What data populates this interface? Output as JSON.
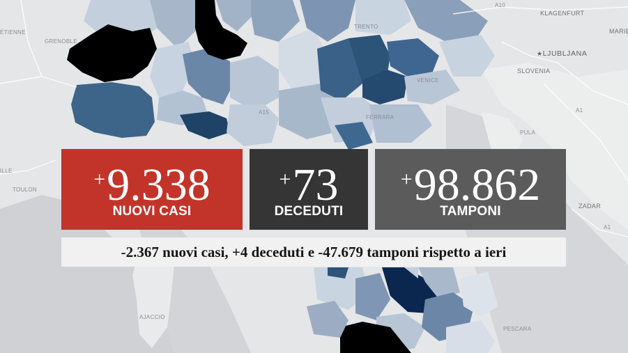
{
  "colors": {
    "background": "#e5e6e8",
    "cases_card": "#c2342a",
    "deaths_card": "#353535",
    "tests_card": "#5b5b5b",
    "banner": "#f1f1f1",
    "shade_darkest": "#000000",
    "shade_navy": "#0b2750",
    "shade_dark": "#2e5579",
    "shade_medium": "#53749a",
    "shade_light": "#a7b6c9"
  },
  "map": {
    "labels": {
      "grenoble": "GRENOBLE",
      "etienne": "ÉTIENNE",
      "ille": "ILLE",
      "toulon": "TOULON",
      "ajaccio": "AJACCIO",
      "a15": "A15",
      "venice": "VENICE",
      "trento": "TRENTO",
      "klagenfurt": "KLAGENFURT",
      "maribor": "MARIB",
      "ljubljana": "LJUBLJANA",
      "slovenia": "SLOVENIA",
      "a10": "A10",
      "a1_north": "A1",
      "a1_south": "A1",
      "pula": "PULA",
      "zadar": "ZADAR",
      "pescara": "PESCARA",
      "ferrara": "FERRARA"
    }
  },
  "cases": {
    "plus": "+",
    "value": "9.338",
    "label": "NUOVI CASI"
  },
  "deaths": {
    "plus": "+",
    "value": "73",
    "label": "DECEDUTI"
  },
  "tests": {
    "plus": "+",
    "value": "98.862",
    "label": "TAMPONI"
  },
  "comparison": {
    "text": "-2.367 nuovi casi, +4 deceduti e -47.679 tamponi rispetto a ieri"
  }
}
